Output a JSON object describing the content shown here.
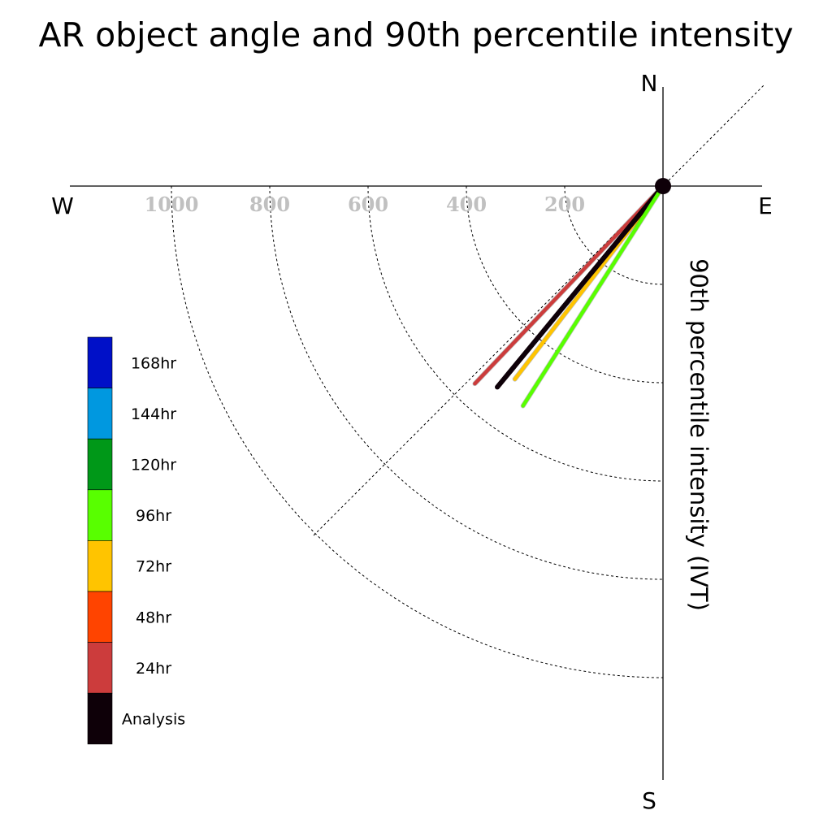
{
  "chart_data": {
    "type": "polar-vector",
    "title": "AR object angle and 90th percentile intensity",
    "ylabel": "90th percentile intensity (IVT)",
    "compass": {
      "north": "N",
      "south": "S",
      "east": "E",
      "west": "W"
    },
    "radial_ticks": [
      "200",
      "400",
      "600",
      "800",
      "1000"
    ],
    "radial_tick_values": [
      200,
      400,
      600,
      800,
      1000
    ],
    "rmax": 1200,
    "grid": true,
    "legend_placement": "left",
    "legend": [
      {
        "label": "168hr",
        "color": "#0010c8"
      },
      {
        "label": "144hr",
        "color": "#0098e0"
      },
      {
        "label": "120hr",
        "color": "#009818"
      },
      {
        "label": "96hr",
        "color": "#58ff00"
      },
      {
        "label": "72hr",
        "color": "#ffc400"
      },
      {
        "label": "48hr",
        "color": "#ff4400"
      },
      {
        "label": "24hr",
        "color": "#cc3c3c"
      },
      {
        "label": "Analysis",
        "color": "#0e0008"
      }
    ],
    "series": [
      {
        "name": "24hr",
        "color": "#cc3c3c",
        "angle_deg": 223.6,
        "intensity": 555
      },
      {
        "name": "48hr",
        "color": "#ff4400",
        "angle_deg": 219.5,
        "intensity": 505
      },
      {
        "name": "72hr",
        "color": "#ffc400",
        "angle_deg": 217.5,
        "intensity": 495
      },
      {
        "name": "Analysis",
        "color": "#0e0008",
        "angle_deg": 219.5,
        "intensity": 530
      },
      {
        "name": "96hr",
        "color": "#58ff00",
        "angle_deg": 212.5,
        "intensity": 530
      }
    ]
  }
}
